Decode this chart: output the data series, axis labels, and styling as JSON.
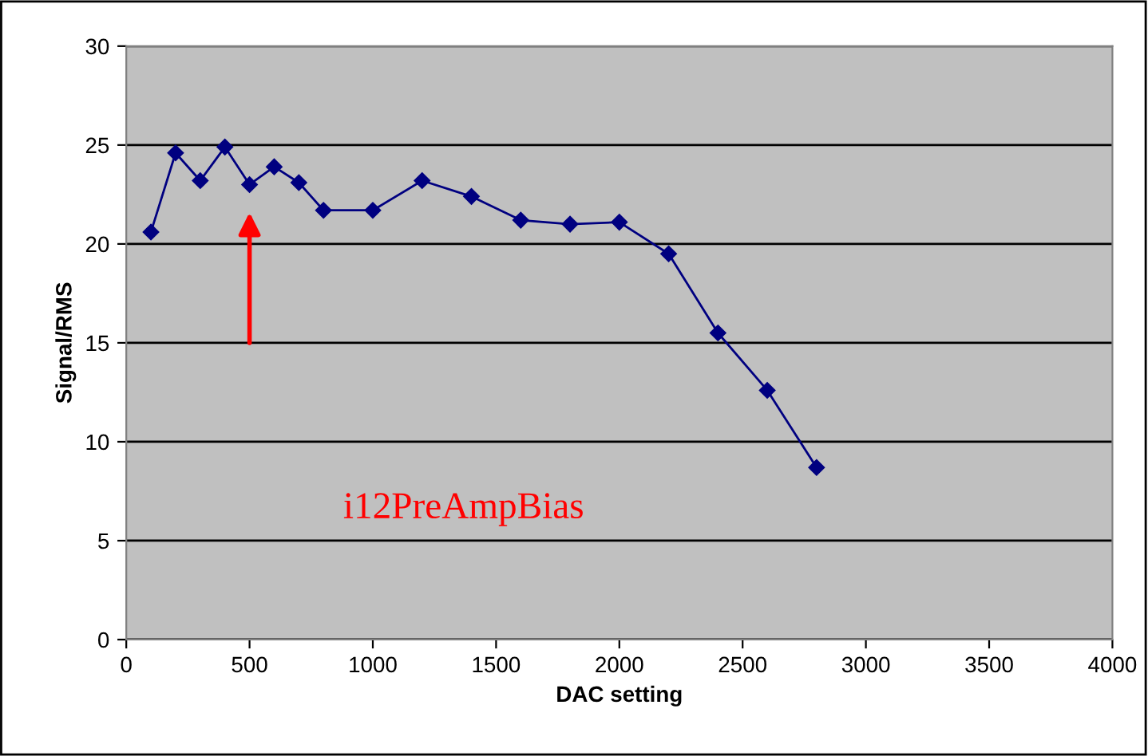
{
  "chart_data": {
    "type": "line",
    "xlabel": "DAC setting",
    "ylabel": "Signal/RMS",
    "x": [
      100,
      200,
      300,
      400,
      500,
      600,
      700,
      800,
      1000,
      1200,
      1400,
      1600,
      1800,
      2000,
      2200,
      2400,
      2600,
      2800
    ],
    "series": [
      {
        "color": "#000080",
        "values": [
          20.6,
          24.6,
          23.2,
          24.9,
          23.0,
          23.9,
          23.1,
          21.7,
          21.7,
          23.2,
          22.4,
          21.2,
          21.0,
          21.1,
          19.5,
          15.5,
          12.6,
          8.7
        ]
      }
    ],
    "xlim": [
      0,
      4000
    ],
    "xticks": [
      0,
      500,
      1000,
      1500,
      2000,
      2500,
      3000,
      3500,
      4000
    ],
    "ylim": [
      0,
      30
    ],
    "yticks": [
      0,
      5,
      10,
      15,
      20,
      25,
      30
    ],
    "grid": "y",
    "marker": "diamond",
    "line_style": "solid",
    "legend": false,
    "annotations": [
      "i12PreAmpBias"
    ]
  }
}
